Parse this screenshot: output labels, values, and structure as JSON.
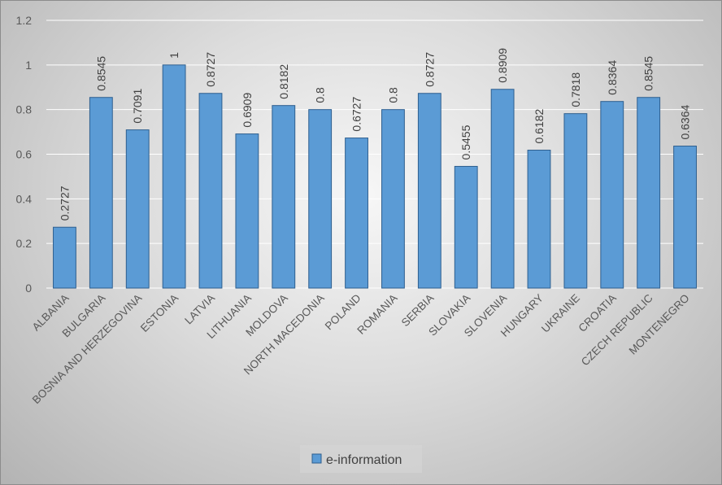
{
  "chart_data": {
    "type": "bar",
    "categories": [
      "ALBANIA",
      "BULGARIA",
      "BOSNIA AND HERZEGOVINA",
      "ESTONIA",
      "LATVIA",
      "LITHUANIA",
      "MOLDOVA",
      "NORTH MACEDONIA",
      "POLAND",
      "ROMANIA",
      "SERBIA",
      "SLOVAKIA",
      "SLOVENIA",
      "HUNGARY",
      "UKRAINE",
      "CROATIA",
      "CZECH REPUBLIC",
      "MONTENEGRO"
    ],
    "series": [
      {
        "name": "e-information",
        "values": [
          0.2727,
          0.8545,
          0.7091,
          1,
          0.8727,
          0.6909,
          0.8182,
          0.8,
          0.6727,
          0.8,
          0.8727,
          0.5455,
          0.8909,
          0.6182,
          0.7818,
          0.8364,
          0.8545,
          0.6364
        ],
        "labels": [
          "0.2727",
          "0.8545",
          "0.7091",
          "1",
          "0.8727",
          "0.6909",
          "0.8182",
          "0.8",
          "0.6727",
          "0.8",
          "0.8727",
          "0.5455",
          "0.8909",
          "0.6182",
          "0.7818",
          "0.8364",
          "0.8545",
          "0.6364"
        ]
      }
    ],
    "ylim": [
      0,
      1.2
    ],
    "yticks": [
      0,
      0.2,
      0.4,
      0.6,
      0.8,
      1,
      1.2
    ],
    "ytick_labels": [
      "0",
      "0.2",
      "0.4",
      "0.6",
      "0.8",
      "1",
      "1.2"
    ],
    "grid": true,
    "legend_position": "bottom",
    "colors": {
      "bar_fill": "#5b9bd5",
      "bar_stroke": "#2e5f8f",
      "grid": "#ffffff"
    }
  }
}
